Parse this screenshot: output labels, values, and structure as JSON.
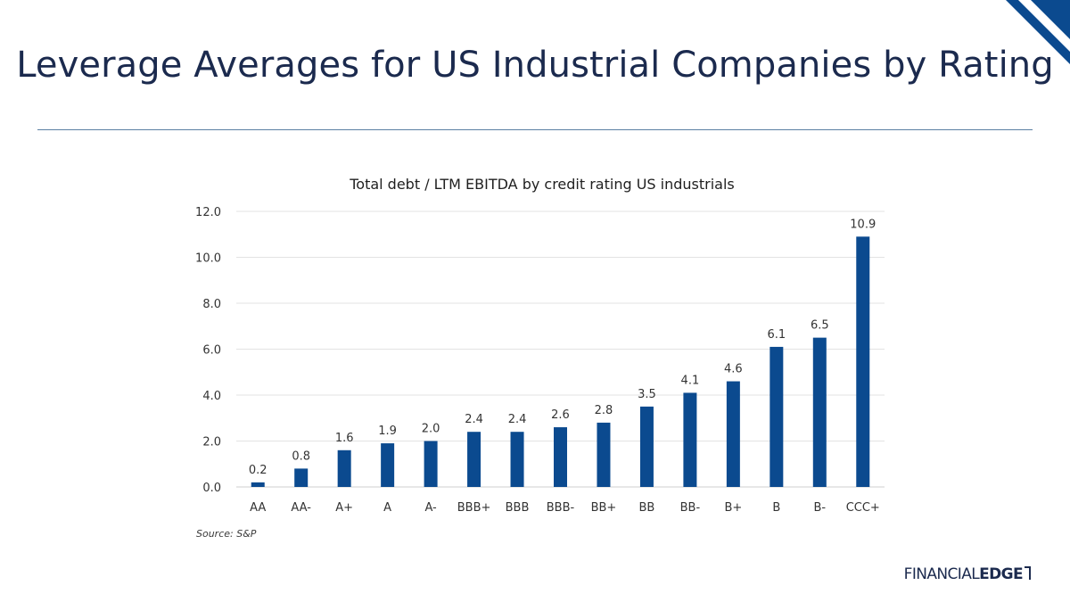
{
  "slide": {
    "title": "Leverage Averages for US Industrial Companies by Rating",
    "source": "Source: S&P",
    "brand_light": "FINANCIAL",
    "brand_bold": "EDGE"
  },
  "colors": {
    "title": "#1b2a4e",
    "bar": "#0b4a8f",
    "accent": "#0b4a8f",
    "rule": "#5a7fa3",
    "grid": "#e3e3e3"
  },
  "chart_data": {
    "type": "bar",
    "title": "Total debt / LTM EBITDA by credit rating US industrials",
    "xlabel": "",
    "ylabel": "",
    "categories": [
      "AA",
      "AA-",
      "A+",
      "A",
      "A-",
      "BBB+",
      "BBB",
      "BBB-",
      "BB+",
      "BB",
      "BB-",
      "B+",
      "B",
      "B-",
      "CCC+"
    ],
    "values": [
      0.2,
      0.8,
      1.6,
      1.9,
      2.0,
      2.4,
      2.4,
      2.6,
      2.8,
      3.5,
      4.1,
      4.6,
      6.1,
      6.5,
      10.9
    ],
    "data_labels": [
      "0.2",
      "0.8",
      "1.6",
      "1.9",
      "2.0",
      "2.4",
      "2.4",
      "2.6",
      "2.8",
      "3.5",
      "4.1",
      "4.6",
      "6.1",
      "6.5",
      "10.9"
    ],
    "ylim": [
      0,
      12
    ],
    "yticks": [
      "0.0",
      "2.0",
      "4.0",
      "6.0",
      "8.0",
      "10.0",
      "12.0"
    ],
    "grid": true,
    "legend": "none"
  }
}
